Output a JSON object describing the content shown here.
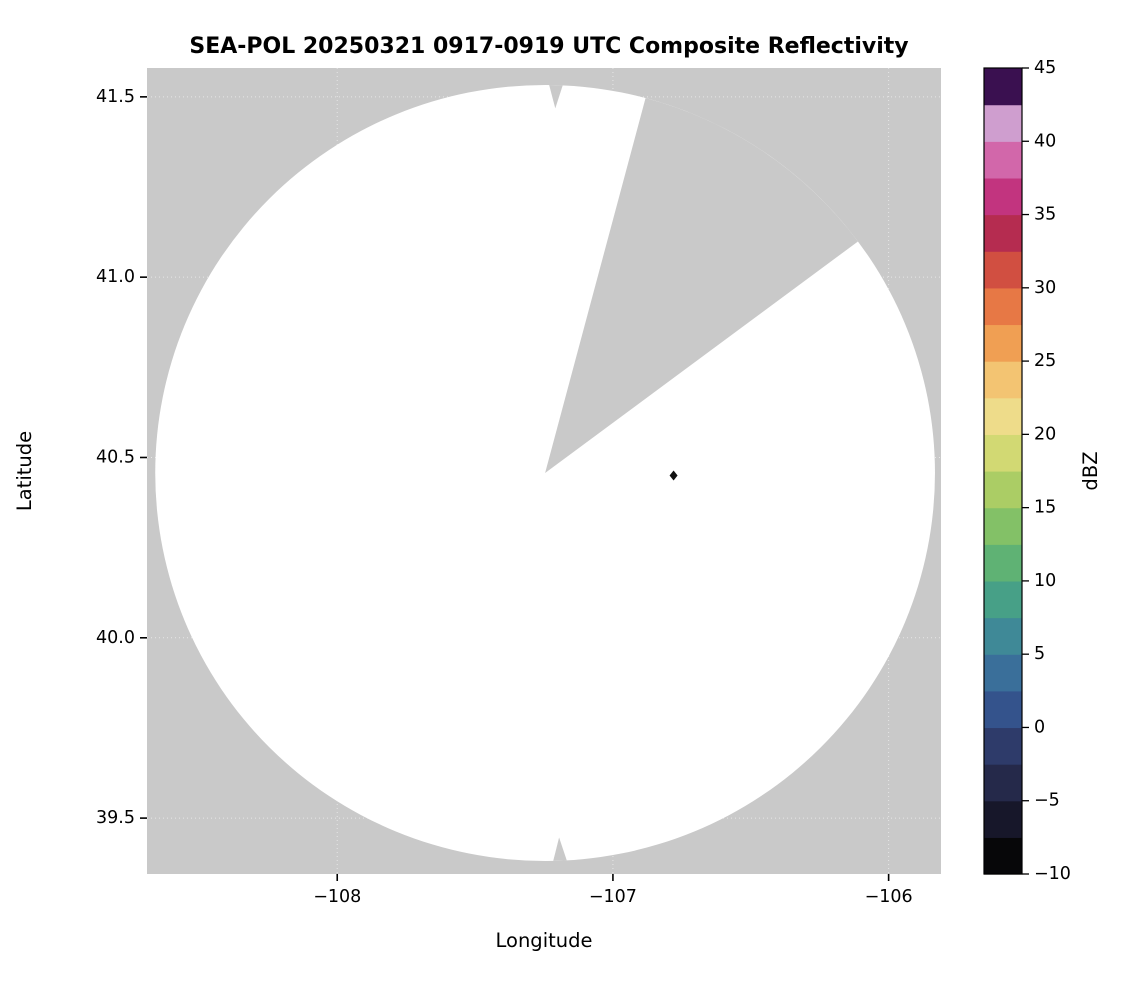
{
  "page": {
    "background": "#ffffff"
  },
  "chart_data": {
    "type": "heatmap",
    "variant": "radar-ppi-composite-reflectivity",
    "title": "SEA-POL 20250321 0917-0919 UTC Composite Reflectivity",
    "xlabel": "Longitude",
    "ylabel": "Latitude",
    "xlim": [
      -108.69,
      -105.81
    ],
    "ylim": [
      39.345,
      41.58
    ],
    "xticks": [
      -108,
      -107,
      -106
    ],
    "xtick_labels": [
      "−108",
      "−107",
      "−106"
    ],
    "yticks": [
      41.5,
      41.0,
      40.5,
      40.0,
      39.5
    ],
    "ytick_labels": [
      "41.5",
      "41.0",
      "40.5",
      "40.0",
      "39.5"
    ],
    "grid": true,
    "grid_style": "faint-white-dotted",
    "background_color": "#c9c9c9",
    "coverage_circle": {
      "center_lon": -107.246,
      "center_lat": 40.457,
      "radius_lat_deg": 1.076,
      "fill": "#ffffff",
      "missing_sector_az_deg": [
        15.0,
        53.5
      ],
      "rim_notches_az_deg": [
        1.6,
        177.8
      ]
    },
    "echoes": [
      {
        "lon": -106.78,
        "lat": 40.45,
        "marker": "diamond",
        "color": "#111111",
        "approx_dbz": -10
      }
    ],
    "colorbar": {
      "label": "dBZ",
      "min": -10,
      "max": 45,
      "ticks": [
        -10,
        -5,
        0,
        5,
        10,
        15,
        20,
        25,
        30,
        35,
        40,
        45
      ],
      "tick_labels": [
        "−10",
        "−5",
        "0",
        "5",
        "10",
        "15",
        "20",
        "25",
        "30",
        "35",
        "40",
        "45"
      ],
      "outline_color": "#000000",
      "colors_bottom_to_top": [
        "#070709",
        "#17172a",
        "#25294a",
        "#2e3b6a",
        "#34538c",
        "#3a6f9a",
        "#3f8997",
        "#47a087",
        "#5fb274",
        "#83c167",
        "#abcd65",
        "#d2d973",
        "#eedc8a",
        "#f3c472",
        "#f09f53",
        "#e77845",
        "#d14f41",
        "#b52c50",
        "#c2347f",
        "#d267aa",
        "#cf9ecf",
        "#3a1050"
      ]
    }
  }
}
